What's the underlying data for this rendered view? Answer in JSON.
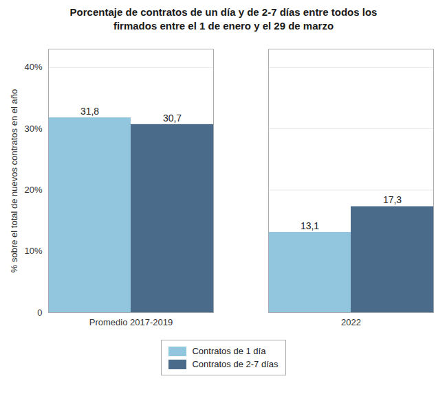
{
  "chart_data": {
    "type": "bar",
    "title": "Porcentaje de contratos de un día y de 2-7 días entre todos los\nfirmados entre el 1 de enero y el 29 de marzo",
    "categories": [
      "Promedio 2017-2019",
      "2022"
    ],
    "series": [
      {
        "name": "Contratos de 1 día",
        "color": "#92C5DE",
        "values": [
          31.8,
          13.1
        ],
        "value_labels": [
          "31,8",
          "13,1"
        ]
      },
      {
        "name": "Contratos de 2-7 días",
        "color": "#4A6B8A",
        "values": [
          30.7,
          17.3
        ],
        "value_labels": [
          "30,7",
          "17,3"
        ]
      }
    ],
    "ylabel": "% sobre el total de nuevos contratos en el año",
    "ylim": [
      0,
      43
    ],
    "yticks": [
      0,
      {
        "value": 10,
        "label": "10%"
      },
      {
        "value": 20,
        "label": "20%"
      },
      {
        "value": 30,
        "label": "30%"
      },
      {
        "value": 40,
        "label": "40%"
      }
    ],
    "grid": true,
    "data_labels": true,
    "legend": "bottom"
  }
}
